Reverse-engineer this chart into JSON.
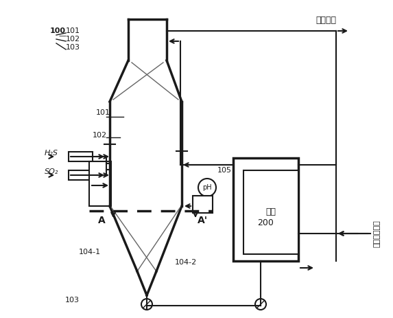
{
  "bg_color": "#ffffff",
  "line_color": "#000000",
  "dark_line": "#1a1a1a",
  "gray_line": "#666666",
  "title": "",
  "labels": {
    "exhaust_gas": "反应尾气",
    "fresh_solution": "新鲜反应溶液",
    "sulfur": "硫磺",
    "h2s": "H₂S",
    "so2": "SO₂",
    "A": "A",
    "A_prime": "A'",
    "n100": "100",
    "n101_top": "101",
    "n102": "102",
    "n103": "103",
    "n101_mid": "101",
    "n104_1": "104-1",
    "n104_2": "104-2",
    "n105": "105",
    "n200": "200",
    "ph": "pH"
  },
  "figsize": [
    5.73,
    4.63
  ],
  "dpi": 100
}
